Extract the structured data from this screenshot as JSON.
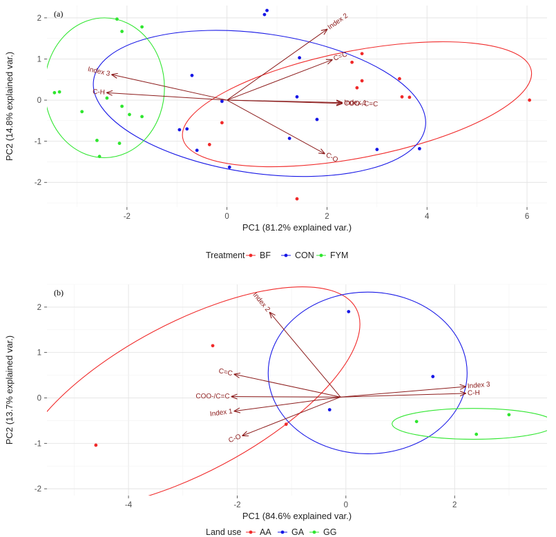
{
  "colors": {
    "arrow": "#8b1a1a",
    "red": "#f02a2a",
    "blue": "#1717e6",
    "green": "#2fe62f"
  },
  "chart_data": [
    {
      "type": "scatter",
      "panel_label": "(a)",
      "xlabel": "PC1 (81.2% explained var.)",
      "ylabel": "PC2 (14.8% explained var.)",
      "xlim": [
        -3.6,
        6.4
      ],
      "ylim": [
        -2.6,
        2.3
      ],
      "x_ticks": [
        -2,
        0,
        2,
        4,
        6
      ],
      "y_ticks": [
        -2,
        -1,
        0,
        1,
        2
      ],
      "grid": true,
      "legend": {
        "title": "Treatment",
        "position": "bottom"
      },
      "series": [
        {
          "name": "BF",
          "color": "#f02a2a",
          "points": [
            [
              2.5,
              0.92
            ],
            [
              2.7,
              1.13
            ],
            [
              2.6,
              0.3
            ],
            [
              2.7,
              0.47
            ],
            [
              3.45,
              0.52
            ],
            [
              3.5,
              0.08
            ],
            [
              3.65,
              0.07
            ],
            [
              6.05,
              0.0
            ],
            [
              -0.1,
              -0.55
            ],
            [
              -0.35,
              -1.08
            ],
            [
              1.4,
              -2.4
            ]
          ]
        },
        {
          "name": "CON",
          "color": "#1717e6",
          "points": [
            [
              0.75,
              2.08
            ],
            [
              0.8,
              2.18
            ],
            [
              1.45,
              1.03
            ],
            [
              1.4,
              0.08
            ],
            [
              1.8,
              -0.47
            ],
            [
              1.25,
              -0.93
            ],
            [
              -0.7,
              0.6
            ],
            [
              -0.1,
              -0.03
            ],
            [
              -0.95,
              -0.72
            ],
            [
              -0.8,
              -0.7
            ],
            [
              -0.6,
              -1.22
            ],
            [
              0.05,
              -1.63
            ],
            [
              3.0,
              -1.2
            ],
            [
              3.85,
              -1.18
            ]
          ]
        },
        {
          "name": "FYM",
          "color": "#2fe62f",
          "points": [
            [
              -2.2,
              1.97
            ],
            [
              -2.1,
              1.67
            ],
            [
              -1.7,
              1.78
            ],
            [
              -3.45,
              0.18
            ],
            [
              -3.35,
              0.2
            ],
            [
              -2.4,
              0.05
            ],
            [
              -2.1,
              -0.15
            ],
            [
              -1.95,
              -0.35
            ],
            [
              -1.7,
              -0.4
            ],
            [
              -2.9,
              -0.28
            ],
            [
              -2.6,
              -0.98
            ],
            [
              -2.15,
              -1.05
            ],
            [
              -2.55,
              -1.37
            ]
          ]
        }
      ],
      "ellipses": [
        {
          "series": "BF",
          "cx": 2.6,
          "cy": -0.1,
          "rx": 3.55,
          "ry": 1.3,
          "angle_deg": 11
        },
        {
          "series": "CON",
          "cx": 0.65,
          "cy": -0.08,
          "rx": 3.35,
          "ry": 1.7,
          "angle_deg": -8
        },
        {
          "series": "FYM",
          "cx": -2.45,
          "cy": 0.3,
          "rx": 1.2,
          "ry": 1.7,
          "angle_deg": 0
        }
      ],
      "loadings": [
        {
          "label": "Index 2",
          "x": 2.0,
          "y": 1.72
        },
        {
          "label": "C=C",
          "x": 2.1,
          "y": 0.98
        },
        {
          "label": "Index 3",
          "x": -2.3,
          "y": 0.62
        },
        {
          "label": "C-H",
          "x": -2.4,
          "y": 0.18
        },
        {
          "label": "Index 1",
          "x": 2.3,
          "y": -0.06
        },
        {
          "label": "COO-/C=C",
          "x": 2.3,
          "y": -0.08
        },
        {
          "label": "C-O",
          "x": 1.95,
          "y": -1.3
        }
      ],
      "origin": [
        0.0,
        0.0
      ]
    },
    {
      "type": "scatter",
      "panel_label": "(b)",
      "xlabel": "PC1 (84.6% explained var.)",
      "ylabel": "PC2 (13.7% explained var.)",
      "xlim": [
        -5.5,
        3.7
      ],
      "ylim": [
        -2.15,
        2.5
      ],
      "x_ticks": [
        -4,
        -2,
        0,
        2
      ],
      "y_ticks": [
        -2,
        -1,
        0,
        1,
        2
      ],
      "grid": true,
      "legend": {
        "title": "Land use",
        "position": "bottom"
      },
      "series": [
        {
          "name": "AA",
          "color": "#f02a2a",
          "points": [
            [
              -2.45,
              1.15
            ],
            [
              -4.6,
              -1.04
            ],
            [
              -1.1,
              -0.58
            ]
          ]
        },
        {
          "name": "GA",
          "color": "#1717e6",
          "points": [
            [
              0.05,
              1.9
            ],
            [
              1.6,
              0.47
            ],
            [
              -0.3,
              -0.26
            ]
          ]
        },
        {
          "name": "GG",
          "color": "#2fe62f",
          "points": [
            [
              1.3,
              -0.52
            ],
            [
              2.4,
              -0.8
            ],
            [
              3.0,
              -0.37
            ]
          ]
        }
      ],
      "ellipses": [
        {
          "series": "AA",
          "cx": -2.9,
          "cy": 0.0,
          "rx": 3.5,
          "ry": 1.65,
          "angle_deg": 28
        },
        {
          "series": "GA",
          "cx": 0.4,
          "cy": 0.55,
          "rx": 1.83,
          "ry": 1.78,
          "angle_deg": 0
        },
        {
          "series": "GG",
          "cx": 2.35,
          "cy": -0.57,
          "rx": 1.5,
          "ry": 0.34,
          "angle_deg": 0
        }
      ],
      "loadings": [
        {
          "label": "Index 2",
          "x": -1.4,
          "y": 1.88
        },
        {
          "label": "C=C",
          "x": -2.05,
          "y": 0.52
        },
        {
          "label": "COO-/C=C",
          "x": -2.1,
          "y": 0.03
        },
        {
          "label": "Index 1",
          "x": -2.05,
          "y": -0.29
        },
        {
          "label": "C-O",
          "x": -1.9,
          "y": -0.83
        },
        {
          "label": "Index 3",
          "x": 2.2,
          "y": 0.25
        },
        {
          "label": "C-H",
          "x": 2.2,
          "y": 0.1
        }
      ],
      "origin": [
        -0.1,
        0.02
      ]
    }
  ]
}
